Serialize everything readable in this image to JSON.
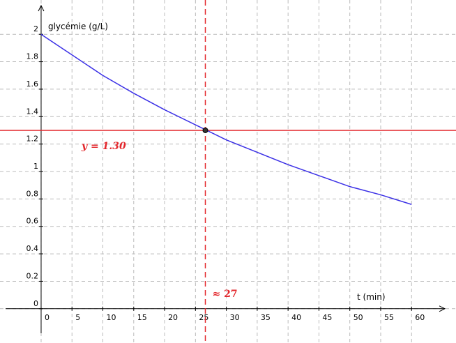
{
  "chart_data": {
    "type": "line",
    "x_label": "t (min)",
    "y_label": "glycémie (g/L)",
    "x": [
      0,
      5,
      10,
      15,
      20,
      25,
      30,
      35,
      40,
      45,
      50,
      55,
      60
    ],
    "series": [
      {
        "color": "#3b30e6",
        "values": [
          2.0,
          1.85,
          1.7,
          1.57,
          1.45,
          1.34,
          1.23,
          1.14,
          1.05,
          0.97,
          0.89,
          0.83,
          0.76
        ]
      }
    ],
    "xlim": [
      -6.66,
      67.2
    ],
    "ylim": [
      -0.25,
      2.25
    ],
    "xticks": [
      0,
      5,
      10,
      15,
      20,
      25,
      30,
      35,
      40,
      45,
      50,
      55,
      60
    ],
    "yticks": [
      0,
      0.2,
      0.4,
      0.6,
      0.8,
      1,
      1.2,
      1.4,
      1.6,
      1.8,
      2
    ],
    "grid": true,
    "threshold": {
      "y": 1.3,
      "label": "y = 1.30",
      "color": "#e3262b"
    },
    "solution": {
      "x": 26.6,
      "label": "≈ 27",
      "color": "#e3262b"
    }
  }
}
